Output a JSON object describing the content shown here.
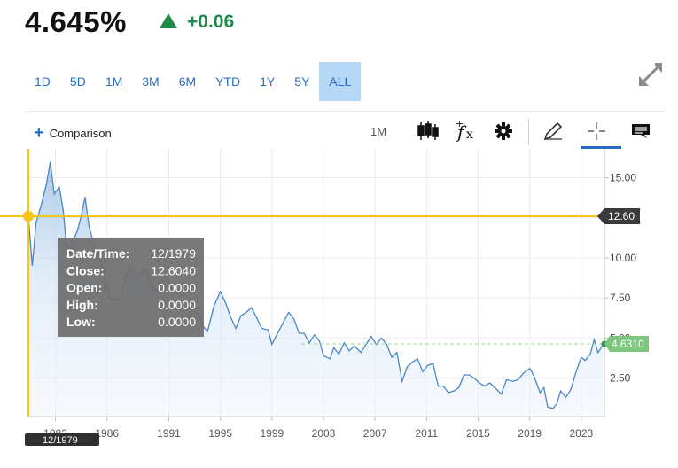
{
  "header": {
    "price": "4.645%",
    "change": "+0.06"
  },
  "ranges": [
    "1D",
    "5D",
    "1M",
    "3M",
    "6M",
    "YTD",
    "1Y",
    "5Y",
    "ALL"
  ],
  "active_range": "ALL",
  "toolbar": {
    "comparison_label": "Comparison",
    "interval_label": "1M"
  },
  "crosshair": {
    "label": "12.60",
    "date_badge": "12/1979",
    "tooltip": [
      {
        "key": "Date/Time:",
        "value": "12/1979"
      },
      {
        "key": "Close:",
        "value": "12.6040"
      },
      {
        "key": "Open:",
        "value": "0.0000"
      },
      {
        "key": "High:",
        "value": "0.0000"
      },
      {
        "key": "Low:",
        "value": "0.0000"
      }
    ]
  },
  "last_value_label": "4.6310",
  "colors": {
    "accent": "#2a6cc2",
    "line": "#4a86c5",
    "crosshair": "#f5c518",
    "up": "#1f8a4c",
    "last": "#7dc67d"
  },
  "chart_data": {
    "type": "area",
    "xlim": [
      1979.9,
      2024.6
    ],
    "ylim": [
      0.1,
      16.8
    ],
    "x_ticks": [
      "1982",
      "1986",
      "1991",
      "1995",
      "1999",
      "2003",
      "2007",
      "2011",
      "2015",
      "2019",
      "2023"
    ],
    "x_tick_values": [
      1982,
      1986,
      1990.8,
      1994.8,
      1998.8,
      2002.8,
      2006.8,
      2010.8,
      2014.8,
      2018.8,
      2022.8
    ],
    "y_ticks": [
      "15.00",
      "12.50",
      "10.00",
      "7.50",
      "5.00",
      "2.50"
    ],
    "y_tick_values": [
      15,
      12.5,
      10,
      7.5,
      5,
      2.5
    ],
    "grid": true,
    "last_value": 4.631,
    "crosshair_value": 12.6,
    "crosshair_x": 1979.9,
    "series": [
      {
        "points": [
          [
            1979.9,
            12.6
          ],
          [
            1980.2,
            9.5
          ],
          [
            1980.5,
            12.2
          ],
          [
            1980.9,
            13.3
          ],
          [
            1981.3,
            14.6
          ],
          [
            1981.6,
            16.0
          ],
          [
            1981.9,
            14.0
          ],
          [
            1982.3,
            14.4
          ],
          [
            1982.6,
            13.0
          ],
          [
            1982.9,
            10.4
          ],
          [
            1983.3,
            10.9
          ],
          [
            1983.7,
            11.7
          ],
          [
            1984.0,
            12.6
          ],
          [
            1984.3,
            13.8
          ],
          [
            1984.6,
            12.0
          ],
          [
            1985.0,
            10.8
          ],
          [
            1985.4,
            10.3
          ],
          [
            1985.8,
            9.0
          ],
          [
            1986.2,
            7.5
          ],
          [
            1986.6,
            7.4
          ],
          [
            1987.0,
            7.4
          ],
          [
            1987.4,
            8.7
          ],
          [
            1987.8,
            9.5
          ],
          [
            1988.3,
            8.8
          ],
          [
            1988.7,
            9.1
          ],
          [
            1989.0,
            9.3
          ],
          [
            1989.4,
            8.3
          ],
          [
            1989.8,
            7.9
          ],
          [
            1990.2,
            8.6
          ],
          [
            1990.6,
            8.9
          ],
          [
            1991.0,
            8.1
          ],
          [
            1991.5,
            8.0
          ],
          [
            1992.0,
            7.4
          ],
          [
            1992.5,
            6.8
          ],
          [
            1993.0,
            6.6
          ],
          [
            1993.4,
            5.8
          ],
          [
            1993.8,
            5.4
          ],
          [
            1994.3,
            7.0
          ],
          [
            1994.8,
            7.9
          ],
          [
            1995.2,
            7.2
          ],
          [
            1995.6,
            6.3
          ],
          [
            1996.0,
            5.6
          ],
          [
            1996.4,
            6.4
          ],
          [
            1996.8,
            6.6
          ],
          [
            1997.2,
            6.9
          ],
          [
            1997.6,
            6.3
          ],
          [
            1998.0,
            5.6
          ],
          [
            1998.5,
            5.5
          ],
          [
            1998.8,
            4.6
          ],
          [
            1999.3,
            5.4
          ],
          [
            1999.7,
            6.0
          ],
          [
            2000.1,
            6.6
          ],
          [
            2000.5,
            6.2
          ],
          [
            2000.9,
            5.3
          ],
          [
            2001.3,
            5.3
          ],
          [
            2001.7,
            4.7
          ],
          [
            2002.1,
            5.2
          ],
          [
            2002.5,
            4.8
          ],
          [
            2002.8,
            3.9
          ],
          [
            2003.3,
            3.7
          ],
          [
            2003.6,
            4.4
          ],
          [
            2004.0,
            4.0
          ],
          [
            2004.4,
            4.7
          ],
          [
            2004.8,
            4.2
          ],
          [
            2005.2,
            4.5
          ],
          [
            2005.7,
            4.1
          ],
          [
            2006.1,
            4.6
          ],
          [
            2006.5,
            5.1
          ],
          [
            2006.9,
            4.6
          ],
          [
            2007.3,
            5.0
          ],
          [
            2007.7,
            4.6
          ],
          [
            2008.1,
            3.8
          ],
          [
            2008.5,
            4.1
          ],
          [
            2008.9,
            2.3
          ],
          [
            2009.3,
            3.2
          ],
          [
            2009.7,
            3.5
          ],
          [
            2010.1,
            3.7
          ],
          [
            2010.5,
            2.9
          ],
          [
            2010.9,
            3.3
          ],
          [
            2011.3,
            3.4
          ],
          [
            2011.7,
            2.0
          ],
          [
            2012.1,
            2.0
          ],
          [
            2012.5,
            1.6
          ],
          [
            2012.9,
            1.7
          ],
          [
            2013.3,
            1.9
          ],
          [
            2013.7,
            2.7
          ],
          [
            2014.1,
            2.7
          ],
          [
            2014.5,
            2.5
          ],
          [
            2014.9,
            2.2
          ],
          [
            2015.3,
            2.0
          ],
          [
            2015.7,
            2.2
          ],
          [
            2016.1,
            1.9
          ],
          [
            2016.6,
            1.5
          ],
          [
            2017.0,
            2.4
          ],
          [
            2017.5,
            2.3
          ],
          [
            2017.9,
            2.4
          ],
          [
            2018.3,
            2.8
          ],
          [
            2018.8,
            3.1
          ],
          [
            2019.1,
            2.7
          ],
          [
            2019.6,
            1.6
          ],
          [
            2019.9,
            1.9
          ],
          [
            2020.2,
            0.7
          ],
          [
            2020.6,
            0.6
          ],
          [
            2020.9,
            0.9
          ],
          [
            2021.2,
            1.7
          ],
          [
            2021.6,
            1.3
          ],
          [
            2022.0,
            1.8
          ],
          [
            2022.4,
            2.9
          ],
          [
            2022.8,
            3.8
          ],
          [
            2023.1,
            3.6
          ],
          [
            2023.5,
            4.0
          ],
          [
            2023.8,
            4.9
          ],
          [
            2024.1,
            4.1
          ],
          [
            2024.5,
            4.6
          ]
        ]
      }
    ]
  }
}
